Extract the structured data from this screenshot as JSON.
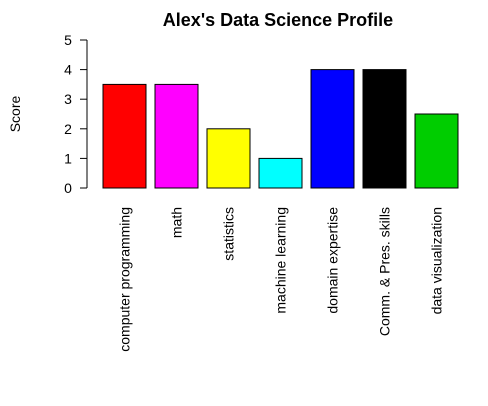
{
  "chart_data": {
    "type": "bar",
    "title": "Alex's Data Science Profile",
    "xlabel": "",
    "ylabel": "Score",
    "ylim": [
      0,
      5
    ],
    "yticks": [
      "0",
      "1",
      "2",
      "3",
      "4",
      "5"
    ],
    "categories": [
      "computer programming",
      "math",
      "statistics",
      "machine learning",
      "domain expertise",
      "Comm. & Pres. skills",
      "data visualization"
    ],
    "values": [
      3.5,
      3.5,
      2,
      1,
      4,
      4,
      2.5
    ],
    "colors": [
      "#ff0000",
      "#ff00ff",
      "#ffff00",
      "#00ffff",
      "#0000ff",
      "#000000",
      "#00cd00"
    ],
    "grid": false,
    "legend": "none"
  }
}
